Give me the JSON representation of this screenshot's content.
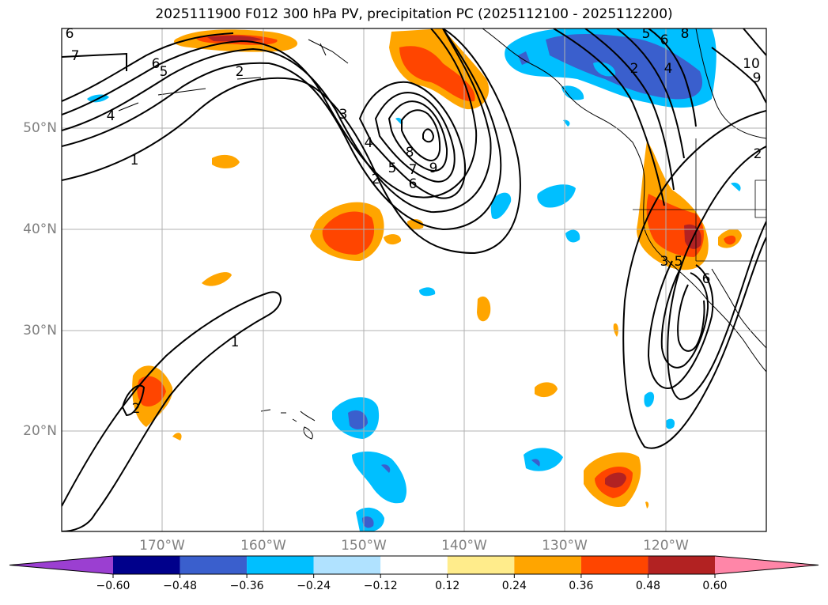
{
  "title": "2025111900 F012 300 hPa PV, precipitation PC (2025112100 - 2025112200)",
  "lat_labels": [
    "50°N",
    "40°N",
    "30°N",
    "20°N"
  ],
  "lon_labels": [
    "170°W",
    "160°W",
    "150°W",
    "140°W",
    "130°W",
    "120°W"
  ],
  "colorbar": {
    "ticks": [
      "−0.60",
      "−0.48",
      "−0.36",
      "−0.24",
      "−0.12",
      "0.12",
      "0.24",
      "0.36",
      "0.48",
      "0.60"
    ],
    "colors": [
      "#9b3fd1",
      "#00008b",
      "#3a5fcd",
      "#00bfff",
      "#b0e2ff",
      "#ffffff",
      "#ffec8b",
      "#ffa500",
      "#ff4500",
      "#b22222",
      "#ff86a8"
    ]
  },
  "contour_labels": [
    "6",
    "7",
    "6",
    "5",
    "4",
    "1",
    "2",
    "3",
    "4",
    "5",
    "6",
    "7",
    "8",
    "9",
    "2",
    "1",
    "2",
    "5",
    "6",
    "8",
    "2",
    "4",
    "10",
    "9",
    "2",
    "3",
    "5",
    "6"
  ],
  "colors": {
    "orange": "#ffa500",
    "red": "#ff4500",
    "darkred": "#b22222",
    "lightblue": "#00bfff",
    "blue": "#3a5fcd",
    "grid": "#b0b0b0",
    "label": "#808080"
  }
}
